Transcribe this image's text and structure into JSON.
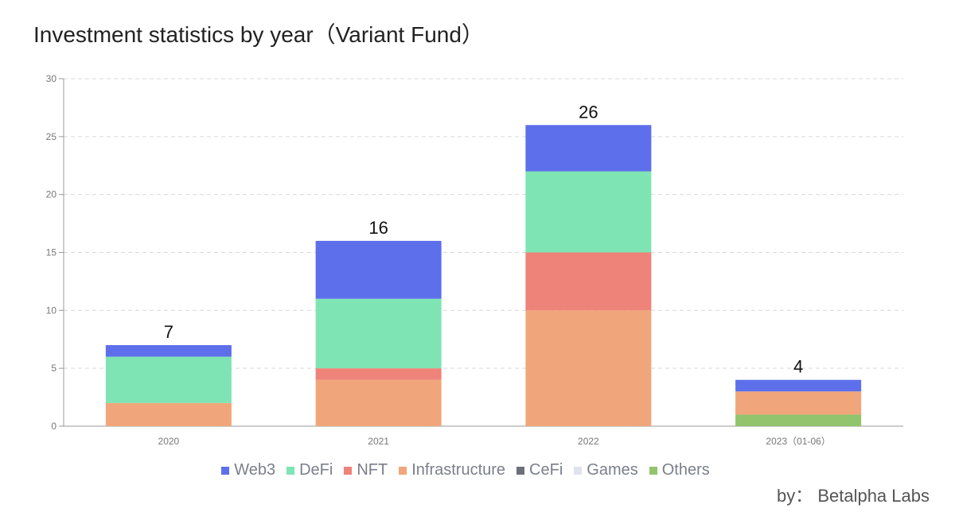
{
  "chart_data": {
    "type": "bar",
    "stacked": true,
    "title": "Investment statistics by year（Variant Fund）",
    "categories": [
      "2020",
      "2021",
      "2022",
      "2023（01-06）"
    ],
    "ylim": [
      0,
      30
    ],
    "yticks": [
      0,
      5,
      10,
      15,
      20,
      25,
      30
    ],
    "grid": true,
    "legend_position": "bottom-center",
    "totals": [
      7,
      16,
      26,
      4
    ],
    "series": [
      {
        "name": "Others",
        "color": "#91c46c",
        "values": [
          0,
          0,
          0,
          1
        ]
      },
      {
        "name": "Infrastructure",
        "color": "#f0a67a",
        "values": [
          2,
          4,
          10,
          2
        ]
      },
      {
        "name": "NFT",
        "color": "#ee8379",
        "values": [
          0,
          1,
          5,
          0
        ]
      },
      {
        "name": "DeFi",
        "color": "#7fe4b3",
        "values": [
          4,
          6,
          7,
          0
        ]
      },
      {
        "name": "Web3",
        "color": "#5d6fea",
        "values": [
          1,
          5,
          4,
          1
        ]
      },
      {
        "name": "CeFi",
        "color": "#6e7079",
        "values": [
          0,
          0,
          0,
          0
        ]
      },
      {
        "name": "Games",
        "color": "#e0e3ee",
        "values": [
          0,
          0,
          0,
          0
        ]
      }
    ],
    "legend_order": [
      "Web3",
      "DeFi",
      "NFT",
      "Infrastructure",
      "CeFi",
      "Games",
      "Others"
    ]
  },
  "credit": "by： Betalpha Labs"
}
